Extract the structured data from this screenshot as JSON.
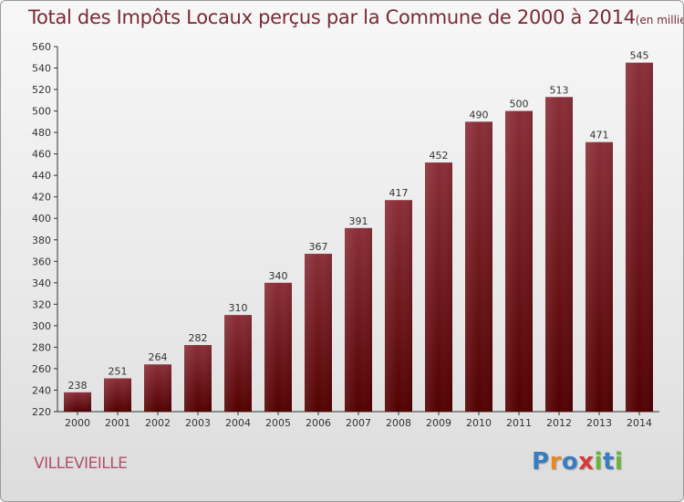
{
  "title": "Total des Impôts Locaux perçus par la Commune de 2000 à 2014",
  "title_unit": "(en milliers d'€)",
  "commune": "VILLEVIEILLE",
  "logo": {
    "letters": [
      "P",
      "r",
      "o",
      "x",
      "i",
      "t",
      "i"
    ],
    "colors": [
      "#3a7cc0",
      "#e8862a",
      "#3a7cc0",
      "#d63a3a",
      "#6bb33a",
      "#3a7cc0",
      "#6bb33a"
    ]
  },
  "colors": {
    "bar_top": "#8a2e38",
    "bar_bottom": "#520000",
    "title": "#7a2a36",
    "commune": "#b3506a"
  },
  "chart_data": {
    "type": "bar",
    "title": "Total des Impôts Locaux perçus par la Commune de 2000 à 2014",
    "xlabel": "",
    "ylabel": "",
    "categories": [
      "2000",
      "2001",
      "2002",
      "2003",
      "2004",
      "2005",
      "2006",
      "2007",
      "2008",
      "2009",
      "2010",
      "2011",
      "2012",
      "2013",
      "2014"
    ],
    "values": [
      238,
      251,
      264,
      282,
      310,
      340,
      367,
      391,
      417,
      452,
      490,
      500,
      513,
      471,
      545
    ],
    "ylim": [
      220,
      560
    ],
    "yticks": [
      220,
      240,
      260,
      280,
      300,
      320,
      340,
      360,
      380,
      400,
      420,
      440,
      460,
      480,
      500,
      520,
      540,
      560
    ],
    "grid": false,
    "data_labels": true
  }
}
